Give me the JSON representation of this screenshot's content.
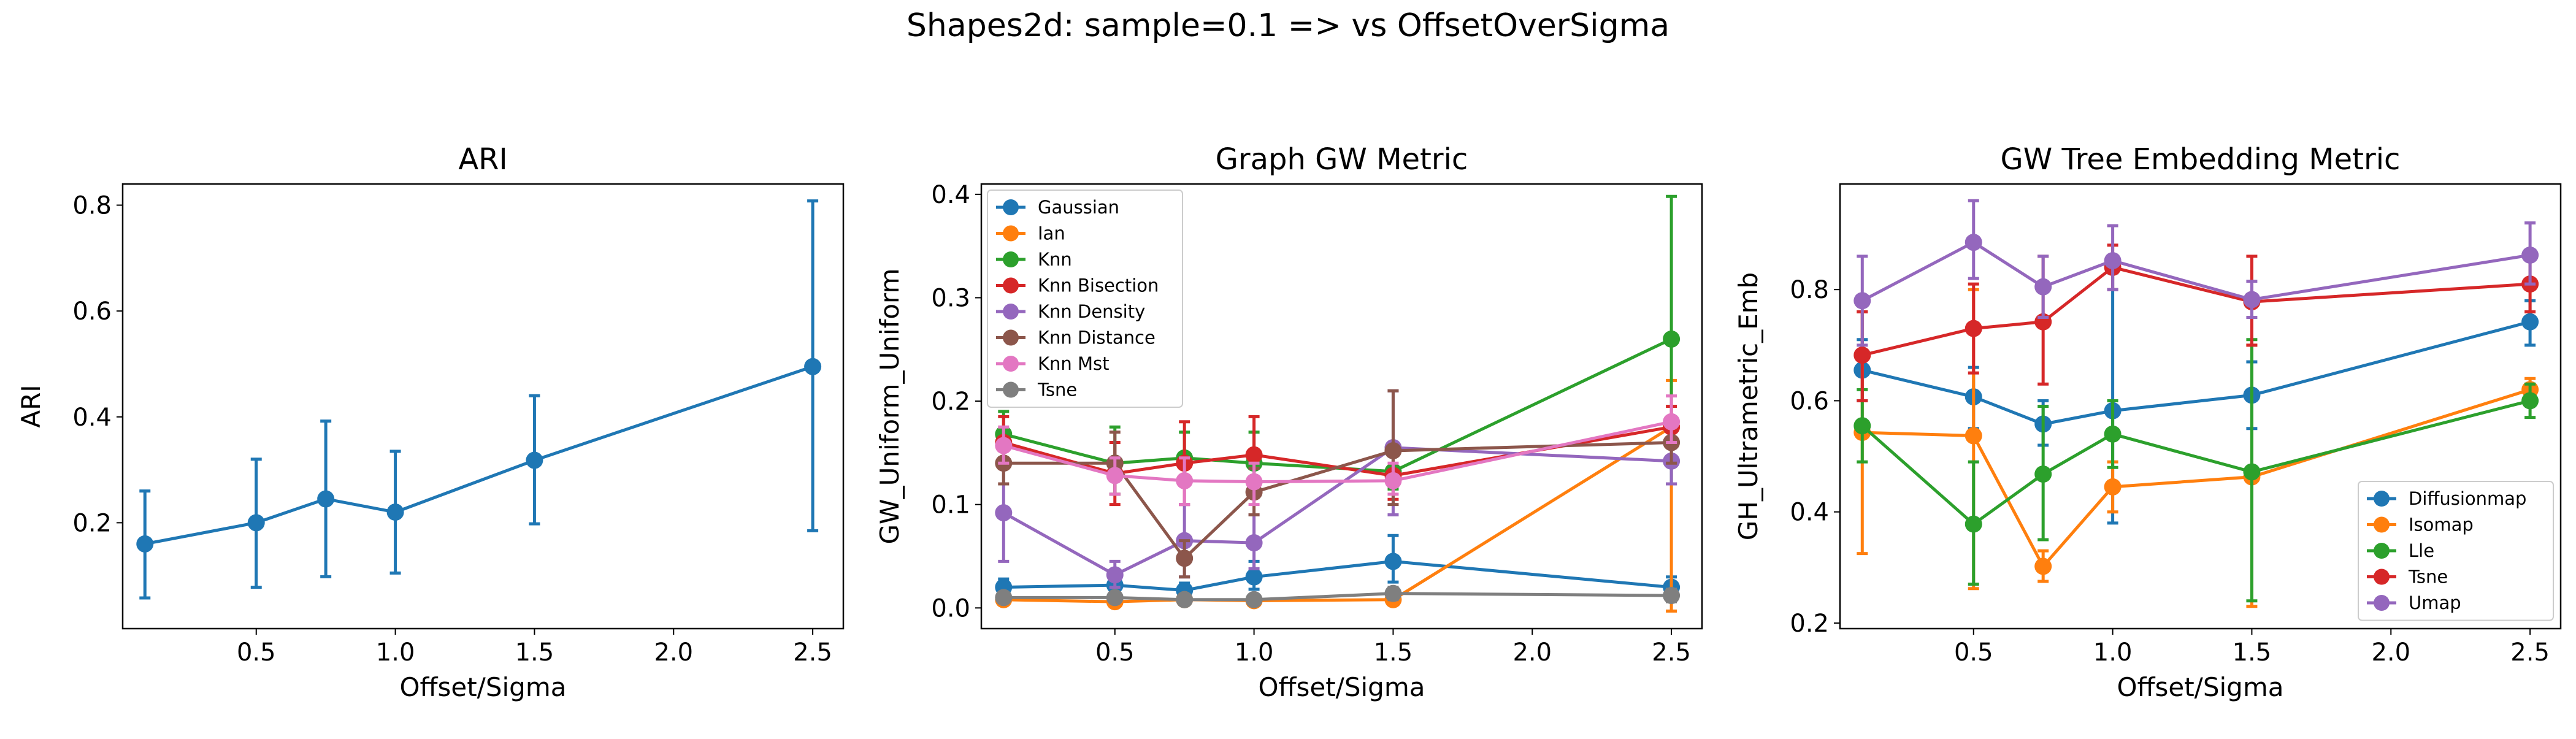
{
  "figure": {
    "title": "Shapes2d: sample=0.1 => vs OffsetOverSigma"
  },
  "colors": {
    "blue": "#1f77b4",
    "orange": "#ff7f0e",
    "green": "#2ca02c",
    "red": "#d62728",
    "purple": "#9467bd",
    "brown": "#8c564b",
    "pink": "#e377c2",
    "gray": "#7f7f7f"
  },
  "chart_data": [
    {
      "type": "line",
      "title": "ARI",
      "xlabel": "Offset/Sigma",
      "ylabel": "ARI",
      "xlim": [
        0.02,
        2.61
      ],
      "ylim": [
        0.0,
        0.84
      ],
      "xticks": [
        0.5,
        1.0,
        1.5,
        2.0,
        2.5
      ],
      "xtick_labels": [
        "0.5",
        "1.0",
        "1.5",
        "2.0",
        "2.5"
      ],
      "yticks": [
        0.2,
        0.4,
        0.6,
        0.8
      ],
      "ytick_labels": [
        "0.2",
        "0.4",
        "0.6",
        "0.8"
      ],
      "grid": false,
      "legend": null,
      "x": [
        0.1,
        0.5,
        0.75,
        1.0,
        1.5,
        2.5
      ],
      "series": [
        {
          "color": "#1f77b4",
          "values": [
            0.16,
            0.2,
            0.245,
            0.22,
            0.318,
            0.495
          ],
          "err_low": [
            0.058,
            0.078,
            0.098,
            0.105,
            0.198,
            0.185
          ],
          "err_high": [
            0.26,
            0.32,
            0.392,
            0.335,
            0.44,
            0.808
          ]
        }
      ]
    },
    {
      "type": "line",
      "title": "Graph GW Metric",
      "xlabel": "Offset/Sigma",
      "ylabel": "GW_Uniform_Uniform",
      "xlim": [
        0.02,
        2.61
      ],
      "ylim": [
        -0.02,
        0.41
      ],
      "xticks": [
        0.5,
        1.0,
        1.5,
        2.0,
        2.5
      ],
      "xtick_labels": [
        "0.5",
        "1.0",
        "1.5",
        "2.0",
        "2.5"
      ],
      "yticks": [
        0.0,
        0.1,
        0.2,
        0.3,
        0.4
      ],
      "ytick_labels": [
        "0.0",
        "0.1",
        "0.2",
        "0.3",
        "0.4"
      ],
      "grid": false,
      "legend": "top-left",
      "x": [
        0.1,
        0.5,
        0.75,
        1.0,
        1.5,
        2.5
      ],
      "series": [
        {
          "name": "Gaussian",
          "color": "#1f77b4",
          "values": [
            0.02,
            0.022,
            0.017,
            0.03,
            0.045,
            0.02
          ],
          "err_low": [
            0.012,
            0.012,
            0.01,
            0.018,
            0.025,
            0.01
          ],
          "err_high": [
            0.028,
            0.032,
            0.024,
            0.045,
            0.07,
            0.03
          ]
        },
        {
          "name": "Ian",
          "color": "#ff7f0e",
          "values": [
            0.008,
            0.006,
            0.008,
            0.007,
            0.008,
            0.175
          ],
          "err_low": [
            0.004,
            0.003,
            0.004,
            0.003,
            0.004,
            -0.003
          ],
          "err_high": [
            0.012,
            0.01,
            0.012,
            0.011,
            0.012,
            0.22
          ]
        },
        {
          "name": "Knn",
          "color": "#2ca02c",
          "values": [
            0.168,
            0.14,
            0.145,
            0.14,
            0.132,
            0.26
          ],
          "err_low": [
            0.145,
            0.11,
            0.12,
            0.11,
            0.115,
            0.12
          ],
          "err_high": [
            0.19,
            0.175,
            0.17,
            0.17,
            0.15,
            0.398
          ]
        },
        {
          "name": "Knn Bisection",
          "color": "#d62728",
          "values": [
            0.16,
            0.13,
            0.14,
            0.148,
            0.128,
            0.175
          ],
          "err_low": [
            0.135,
            0.1,
            0.1,
            0.115,
            0.105,
            0.155
          ],
          "err_high": [
            0.185,
            0.16,
            0.18,
            0.185,
            0.15,
            0.195
          ]
        },
        {
          "name": "Knn Density",
          "color": "#9467bd",
          "values": [
            0.092,
            0.032,
            0.065,
            0.063,
            0.155,
            0.142
          ],
          "err_low": [
            0.045,
            0.02,
            0.03,
            0.038,
            0.09,
            0.12
          ],
          "err_high": [
            0.14,
            0.045,
            0.1,
            0.09,
            0.21,
            0.165
          ]
        },
        {
          "name": "Knn Distance",
          "color": "#8c564b",
          "values": [
            0.14,
            0.14,
            0.048,
            0.112,
            0.152,
            0.16
          ],
          "err_low": [
            0.12,
            0.11,
            0.03,
            0.09,
            0.1,
            0.14
          ],
          "err_high": [
            0.16,
            0.17,
            0.065,
            0.135,
            0.21,
            0.18
          ]
        },
        {
          "name": "Knn Mst",
          "color": "#e377c2",
          "values": [
            0.157,
            0.128,
            0.123,
            0.122,
            0.123,
            0.18
          ],
          "err_low": [
            0.14,
            0.11,
            0.1,
            0.1,
            0.11,
            0.16
          ],
          "err_high": [
            0.175,
            0.145,
            0.145,
            0.14,
            0.14,
            0.205
          ]
        },
        {
          "name": "Tsne",
          "color": "#7f7f7f",
          "values": [
            0.01,
            0.01,
            0.008,
            0.008,
            0.014,
            0.012
          ],
          "err_low": [
            0.006,
            0.006,
            0.005,
            0.005,
            0.008,
            0.006
          ],
          "err_high": [
            0.014,
            0.014,
            0.011,
            0.011,
            0.02,
            0.018
          ]
        }
      ]
    },
    {
      "type": "line",
      "title": "GW Tree Embedding Metric",
      "xlabel": "Offset/Sigma",
      "ylabel": "GH_Ultrametric_Emb",
      "xlim": [
        0.02,
        2.61
      ],
      "ylim": [
        0.19,
        0.99
      ],
      "xticks": [
        0.5,
        1.0,
        1.5,
        2.0,
        2.5
      ],
      "xtick_labels": [
        "0.5",
        "1.0",
        "1.5",
        "2.0",
        "2.5"
      ],
      "yticks": [
        0.2,
        0.4,
        0.6,
        0.8
      ],
      "ytick_labels": [
        "0.2",
        "0.4",
        "0.6",
        "0.8"
      ],
      "grid": false,
      "legend": "bottom-right",
      "x": [
        0.1,
        0.5,
        0.75,
        1.0,
        1.5,
        2.5
      ],
      "series": [
        {
          "name": "Diffusionmap",
          "color": "#1f77b4",
          "values": [
            0.655,
            0.607,
            0.558,
            0.582,
            0.61,
            0.742
          ],
          "err_low": [
            0.6,
            0.55,
            0.52,
            0.38,
            0.55,
            0.7
          ],
          "err_high": [
            0.71,
            0.66,
            0.6,
            0.83,
            0.67,
            0.78
          ]
        },
        {
          "name": "Isomap",
          "color": "#ff7f0e",
          "values": [
            0.543,
            0.537,
            0.302,
            0.445,
            0.463,
            0.62
          ],
          "err_low": [
            0.325,
            0.262,
            0.275,
            0.4,
            0.23,
            0.6
          ],
          "err_high": [
            0.76,
            0.8,
            0.33,
            0.49,
            0.7,
            0.64
          ]
        },
        {
          "name": "Lle",
          "color": "#2ca02c",
          "values": [
            0.555,
            0.378,
            0.468,
            0.54,
            0.472,
            0.6
          ],
          "err_low": [
            0.49,
            0.27,
            0.35,
            0.48,
            0.24,
            0.57
          ],
          "err_high": [
            0.62,
            0.49,
            0.59,
            0.6,
            0.71,
            0.63
          ]
        },
        {
          "name": "Tsne",
          "color": "#d62728",
          "values": [
            0.682,
            0.73,
            0.742,
            0.84,
            0.778,
            0.81
          ],
          "err_low": [
            0.6,
            0.65,
            0.63,
            0.8,
            0.7,
            0.76
          ],
          "err_high": [
            0.76,
            0.81,
            0.86,
            0.88,
            0.86,
            0.86
          ]
        },
        {
          "name": "Umap",
          "color": "#9467bd",
          "values": [
            0.78,
            0.885,
            0.805,
            0.852,
            0.782,
            0.862
          ],
          "err_low": [
            0.7,
            0.82,
            0.75,
            0.8,
            0.75,
            0.81
          ],
          "err_high": [
            0.86,
            0.96,
            0.86,
            0.915,
            0.815,
            0.92
          ]
        }
      ]
    }
  ]
}
